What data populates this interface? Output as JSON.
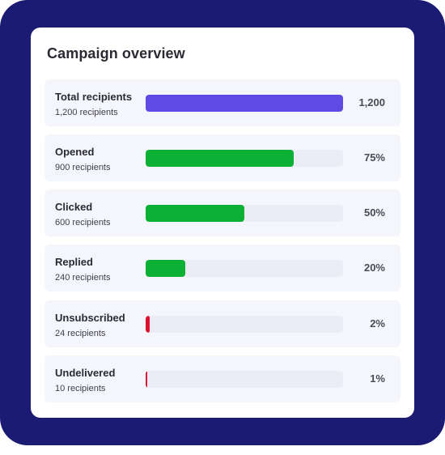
{
  "card": {
    "title": "Campaign overview"
  },
  "colors": {
    "frame": "#1b1b74",
    "total": "#6149e3",
    "positive": "#0bb035",
    "negative": "#dc1130",
    "track": "#ececf6"
  },
  "rows": [
    {
      "label": "Total recipients",
      "sub": "1,200 recipients",
      "value": "1,200",
      "fraction": 1.0,
      "color": "#6149e3"
    },
    {
      "label": "Opened",
      "sub": "900 recipients",
      "value": "75%",
      "fraction": 0.75,
      "color": "#0bb035"
    },
    {
      "label": "Clicked",
      "sub": "600 recipients",
      "value": "50%",
      "fraction": 0.5,
      "color": "#0bb035"
    },
    {
      "label": "Replied",
      "sub": "240 recipients",
      "value": "20%",
      "fraction": 0.2,
      "color": "#0bb035"
    },
    {
      "label": "Unsubscribed",
      "sub": "24 recipients",
      "value": "2%",
      "fraction": 0.02,
      "color": "#dc1130"
    },
    {
      "label": "Undelivered",
      "sub": "10 recipients",
      "value": "1%",
      "fraction": 0.01,
      "color": "#dc1130"
    }
  ]
}
